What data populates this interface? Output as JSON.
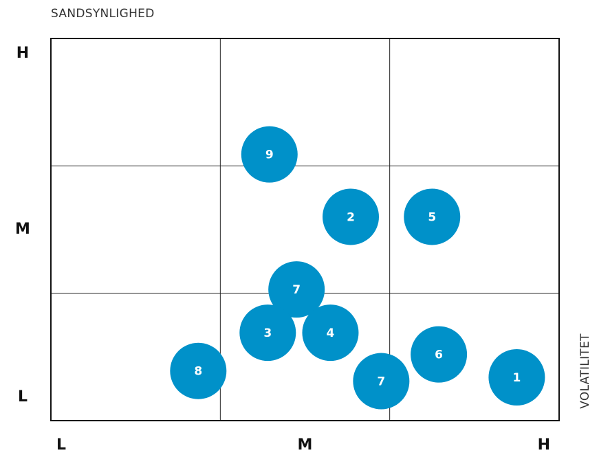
{
  "chart_data": {
    "type": "scatter",
    "y_label": "SANDSYNLIGHED",
    "x_label": "VOLATILITET",
    "xlim": [
      0,
      3
    ],
    "ylim": [
      0,
      3
    ],
    "xticks": [
      {
        "value": 0,
        "label": "L"
      },
      {
        "value": 1.5,
        "label": "M"
      },
      {
        "value": 3,
        "label": "H"
      }
    ],
    "yticks": [
      {
        "value": 0,
        "label": "L"
      },
      {
        "value": 1.5,
        "label": "M"
      },
      {
        "value": 3,
        "label": "H"
      }
    ],
    "grid": true,
    "xgrid": [
      1,
      2
    ],
    "ygrid": [
      1,
      2
    ],
    "series": [
      {
        "color": "#0091c9",
        "labels": [
          "9",
          "2",
          "5",
          "7",
          "3",
          "4",
          "6",
          "8",
          "7",
          "1"
        ],
        "x": [
          1.29,
          1.77,
          2.25,
          1.45,
          1.28,
          1.65,
          2.29,
          0.87,
          1.95,
          2.75
        ],
        "values": [
          2.09,
          1.6,
          1.6,
          1.03,
          0.69,
          0.69,
          0.52,
          0.39,
          0.31,
          0.34
        ]
      }
    ]
  }
}
